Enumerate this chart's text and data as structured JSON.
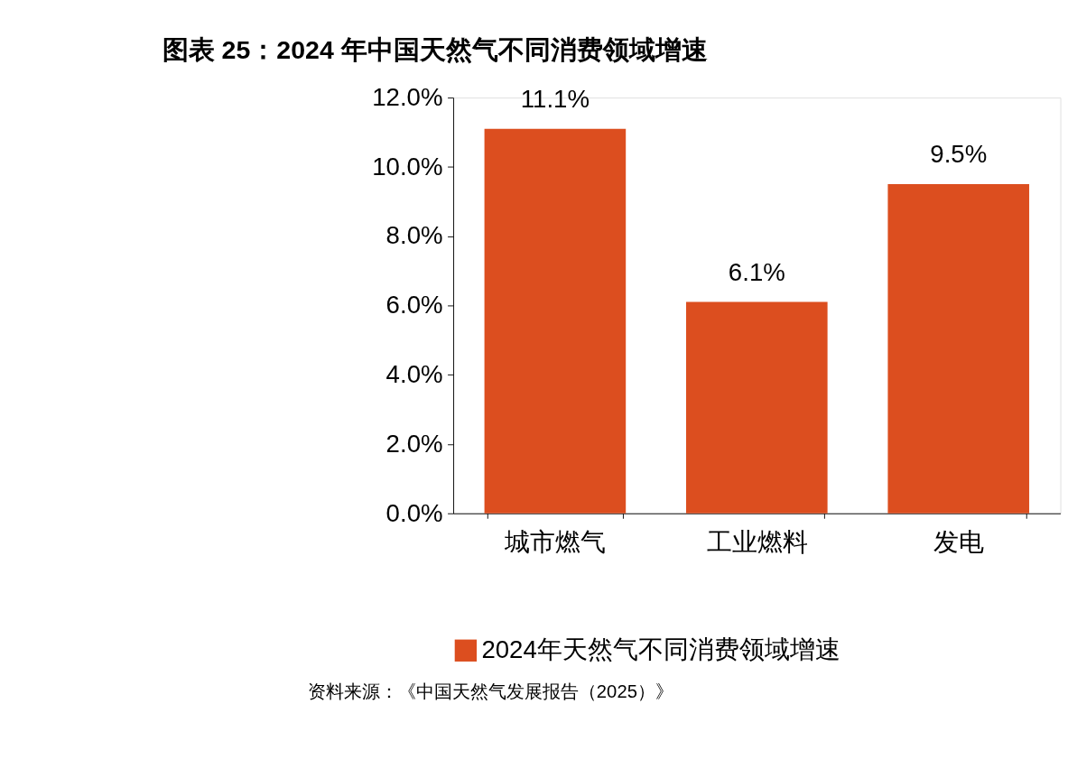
{
  "chart_data": {
    "type": "bar",
    "title": "图表 25：2024 年中国天然气不同消费领域增速",
    "categories": [
      "城市燃气",
      "工业燃料",
      "发电"
    ],
    "series": [
      {
        "name": "2024年天然气不同消费领域增速",
        "color": "#dc4e1f",
        "values": [
          11.1,
          6.1,
          9.5
        ]
      }
    ],
    "value_labels": [
      "11.1%",
      "6.1%",
      "9.5%"
    ],
    "ylim": [
      0,
      12
    ],
    "yticks": [
      {
        "value": 0,
        "label": "0.0%"
      },
      {
        "value": 2,
        "label": "2.0%"
      },
      {
        "value": 4,
        "label": "4.0%"
      },
      {
        "value": 6,
        "label": "6.0%"
      },
      {
        "value": 8,
        "label": "8.0%"
      },
      {
        "value": 10,
        "label": "10.0%"
      },
      {
        "value": 12,
        "label": "12.0%"
      }
    ],
    "grid": false,
    "legend": "bottom",
    "annotations": [
      "资料来源：《中国天然气发展报告（2025）》"
    ]
  }
}
